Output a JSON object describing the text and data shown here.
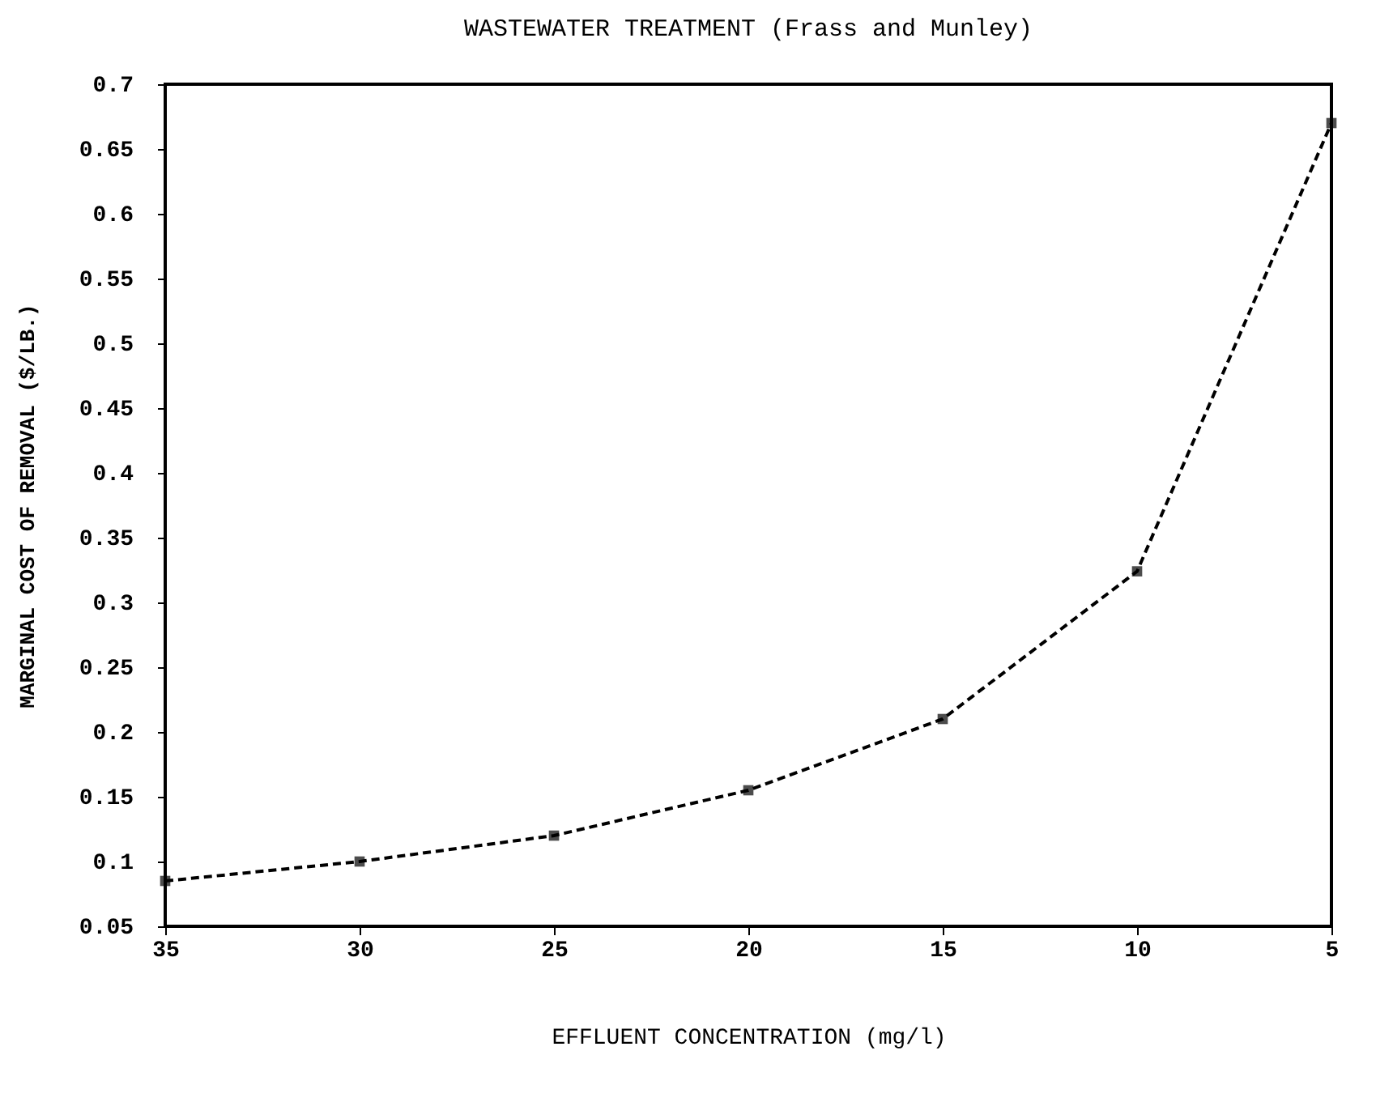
{
  "chart_data": {
    "type": "line",
    "title": "WASTEWATER TREATMENT (Frass and Munley)",
    "xlabel": "EFFLUENT CONCENTRATION (mg/l)",
    "ylabel": "MARGINAL COST OF REMOVAL ($/LB.)",
    "x": [
      35,
      30,
      25,
      20,
      15,
      10,
      5
    ],
    "series": [
      {
        "color": "#000000",
        "values": [
          0.085,
          0.1,
          0.12,
          0.155,
          0.21,
          0.324,
          0.67
        ]
      }
    ],
    "xlim": [
      35,
      5
    ],
    "xticks": [
      35,
      30,
      25,
      20,
      15,
      10,
      5
    ],
    "ylim": [
      0.05,
      0.7
    ],
    "yticks": [
      0.05,
      0.1,
      0.15,
      0.2,
      0.25,
      0.3,
      0.35,
      0.4,
      0.45,
      0.5,
      0.55,
      0.6,
      0.65,
      0.7
    ],
    "grid": false,
    "marker": "square",
    "line_style": "dashed"
  }
}
